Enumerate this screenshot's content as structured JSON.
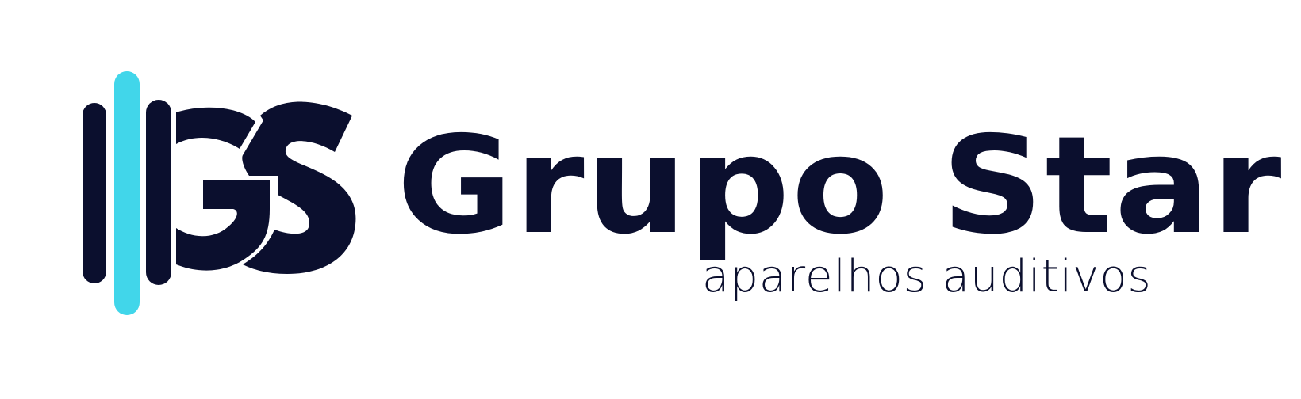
{
  "logo": {
    "monogram": "GS",
    "brand_name": "Grupo Star",
    "tagline": "aparelhos auditivos",
    "colors": {
      "navy": "#0b0f2e",
      "cyan": "#41d6ea",
      "background": "#ffffff"
    }
  }
}
